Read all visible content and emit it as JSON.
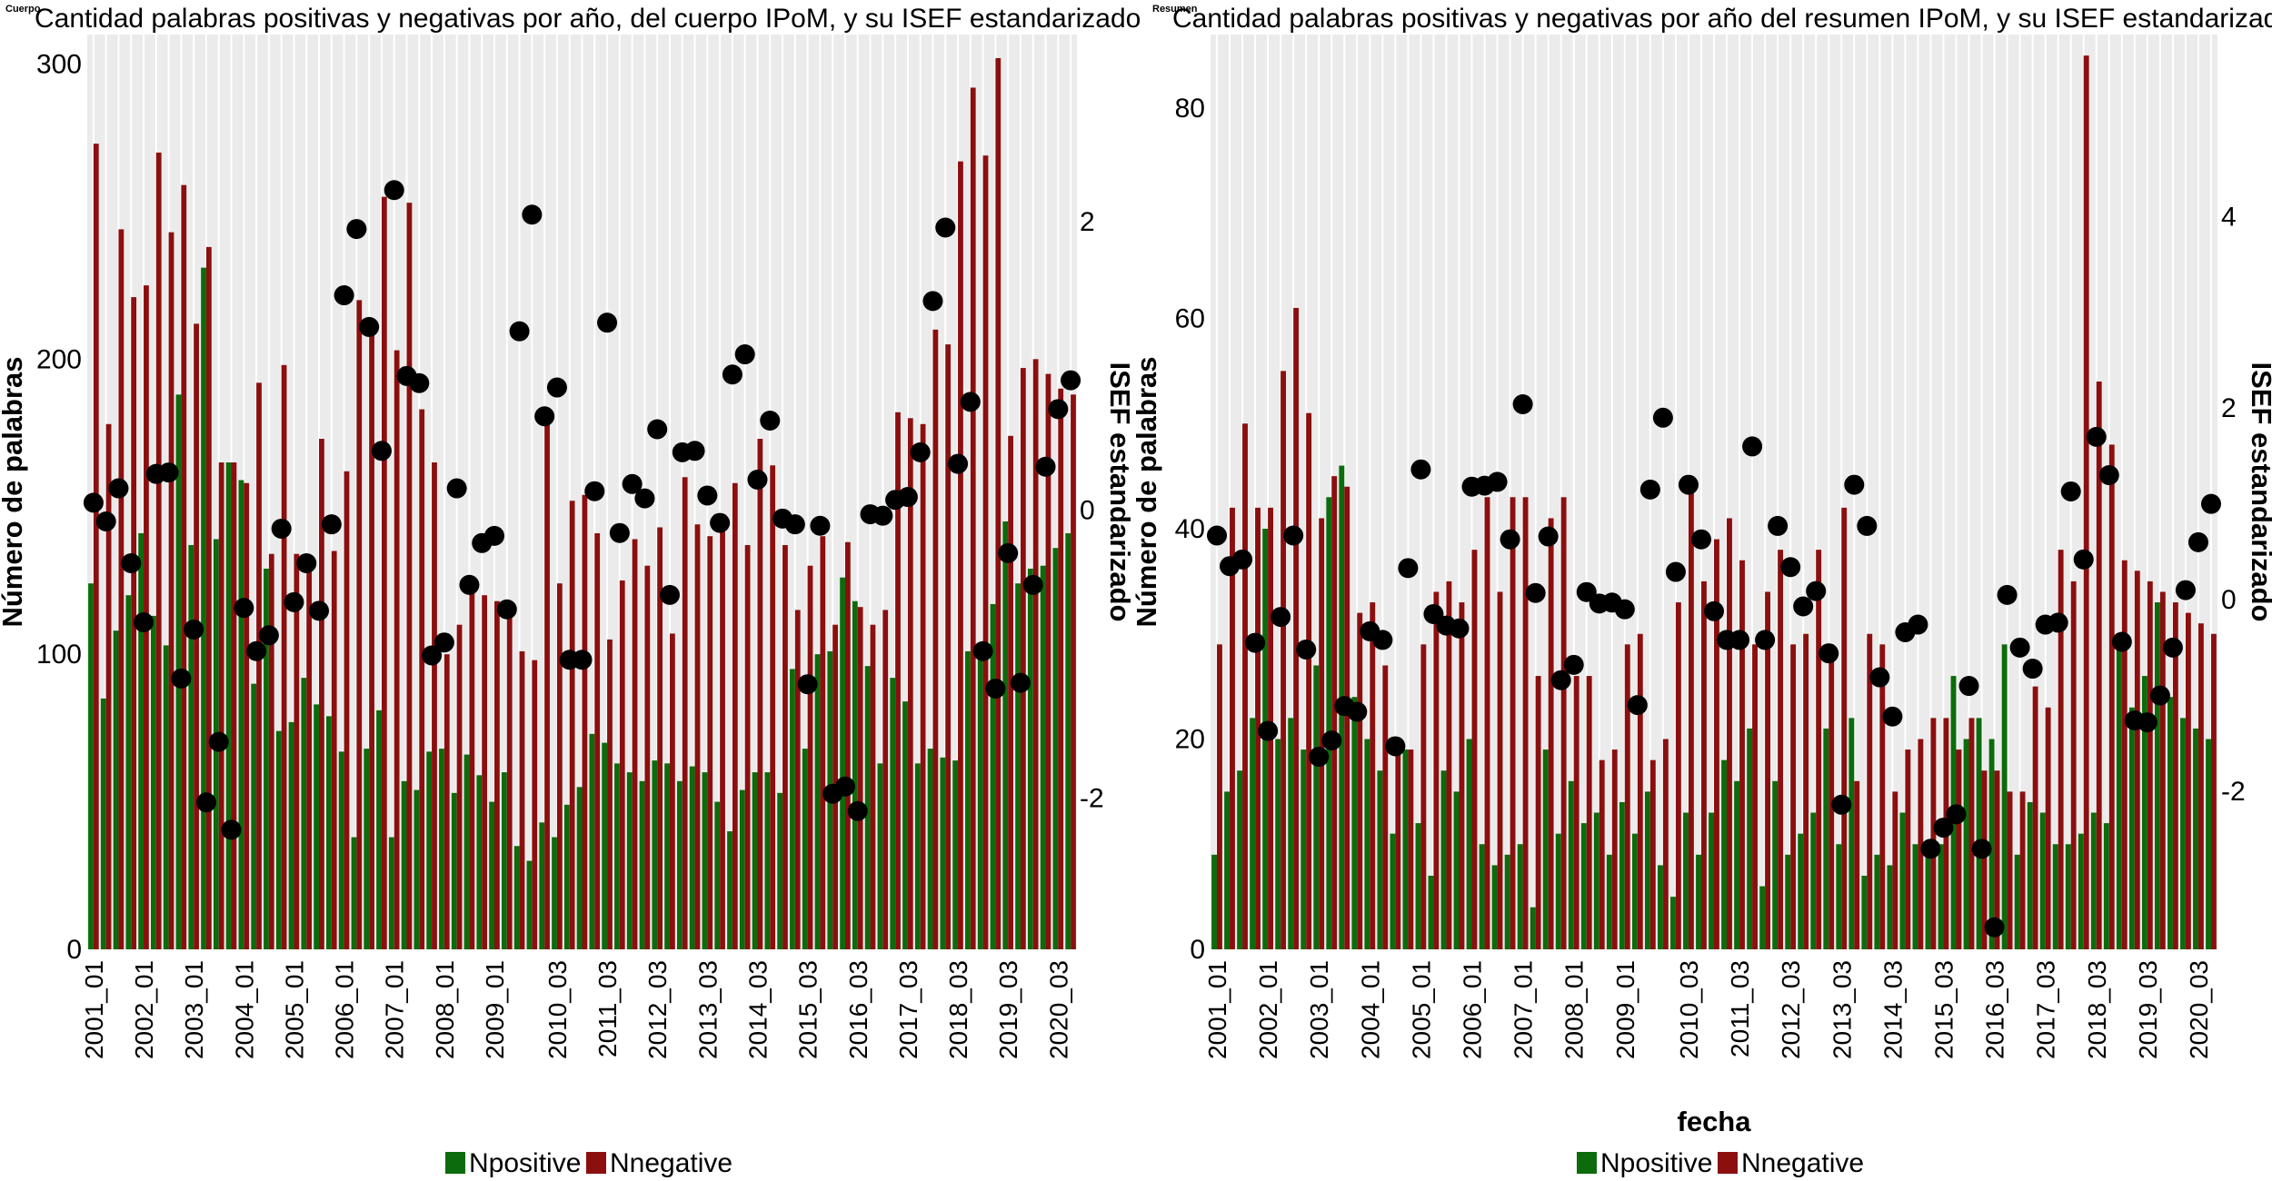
{
  "colors": {
    "positive": "#0c6b0c",
    "negative": "#8b0f0f",
    "dots": "#000000",
    "panel_background": "#ebebeb",
    "grid": "#ffffff"
  },
  "legend": {
    "positive_label": "Npositive",
    "negative_label": "Nnegative"
  },
  "chart_data": [
    {
      "type": "bar",
      "tag": "Cuerpo",
      "title": "Cantidad palabras positivas y negativas por año, del cuerpo IPoM, y su ISEF estandarizado",
      "xlabel": "",
      "ylabel": "Número de palabras",
      "y2label": "ISEF estandarizado",
      "ylim": [
        0,
        310
      ],
      "y2lim": [
        -3.05,
        3.3
      ],
      "yticks": [
        "0",
        "100",
        "200",
        "300"
      ],
      "y2ticks": [
        "-2",
        "0",
        "2"
      ],
      "xtick_labels": [
        "2001_01",
        "2002_01",
        "2003_01",
        "2004_01",
        "2005_01",
        "2006_01",
        "2007_01",
        "2008_01",
        "2009_01",
        "2010_03",
        "2011_03",
        "2012_03",
        "2013_03",
        "2014_03",
        "2015_03",
        "2016_03",
        "2017_03",
        "2018_03",
        "2019_03",
        "2020_03"
      ],
      "n_periods": 79,
      "xtick_positions": [
        0,
        4,
        8,
        12,
        16,
        20,
        24,
        28,
        32,
        37,
        41,
        45,
        49,
        53,
        57,
        61,
        65,
        69,
        73,
        77
      ],
      "legend_position": "bottom",
      "series": [
        {
          "name": "Npositive",
          "values": [
            124,
            85,
            108,
            120,
            141,
            113,
            103,
            188,
            137,
            231,
            139,
            165,
            159,
            90,
            129,
            74,
            77,
            92,
            83,
            79,
            67,
            38,
            68,
            81,
            38,
            57,
            54,
            67,
            68,
            53,
            66,
            59,
            50,
            60,
            35,
            30,
            43,
            38,
            49,
            55,
            73,
            70,
            63,
            60,
            57,
            64,
            63,
            57,
            62,
            60,
            50,
            40,
            54,
            60,
            60,
            53,
            95,
            68,
            100,
            101,
            126,
            118,
            96,
            63,
            92,
            84,
            63,
            68,
            65,
            64,
            101,
            103,
            117,
            145,
            124,
            129,
            130,
            136,
            141
          ]
        },
        {
          "name": "Nnegative",
          "values": [
            273,
            178,
            244,
            221,
            225,
            270,
            243,
            259,
            212,
            238,
            165,
            165,
            158,
            192,
            134,
            198,
            134,
            129,
            173,
            135,
            162,
            220,
            210,
            255,
            203,
            253,
            183,
            165,
            100,
            110,
            124,
            120,
            118,
            115,
            101,
            98,
            182,
            124,
            152,
            154,
            141,
            105,
            125,
            139,
            130,
            143,
            107,
            160,
            144,
            140,
            146,
            158,
            137,
            173,
            164,
            137,
            115,
            130,
            140,
            110,
            138,
            116,
            110,
            115,
            182,
            180,
            178,
            210,
            205,
            267,
            292,
            269,
            302,
            174,
            197,
            200,
            195,
            190,
            188
          ]
        },
        {
          "name": "ISEF",
          "values": [
            0.05,
            -0.08,
            0.15,
            -0.37,
            -0.78,
            0.25,
            0.26,
            -1.17,
            -0.83,
            -2.03,
            -1.61,
            -2.22,
            -0.68,
            -0.98,
            -0.87,
            -0.13,
            -0.64,
            -0.37,
            -0.7,
            -0.1,
            1.49,
            1.95,
            1.27,
            0.41,
            2.22,
            0.93,
            0.88,
            -1.01,
            -0.92,
            0.15,
            -0.52,
            -0.23,
            -0.18,
            -0.69,
            1.24,
            2.05,
            0.65,
            0.85,
            -1.04,
            -1.04,
            0.13,
            1.3,
            -0.16,
            0.18,
            0.08,
            0.56,
            -0.59,
            0.4,
            0.41,
            0.1,
            -0.09,
            0.94,
            1.08,
            0.21,
            0.62,
            -0.06,
            -0.1,
            -1.21,
            -0.11,
            -1.97,
            -1.92,
            -2.09,
            -0.03,
            -0.04,
            0.07,
            0.09,
            0.4,
            1.45,
            1.96,
            0.32,
            0.75,
            -0.98,
            -1.24,
            -0.3,
            -1.2,
            -0.52,
            0.3,
            0.7,
            0.9
          ]
        }
      ]
    },
    {
      "type": "bar",
      "tag": "Resumen",
      "title": "Cantidad palabras positivas y negativas por año del resumen IPoM, y su ISEF estandarizado",
      "xlabel": "fecha",
      "ylabel": "Número de palabras",
      "y2label": "ISEF estandarizado",
      "ylim": [
        0,
        87
      ],
      "y2lim": [
        -3.65,
        5.9
      ],
      "yticks": [
        "0",
        "20",
        "40",
        "60",
        "80"
      ],
      "y2ticks": [
        "-2",
        "0",
        "2",
        "4"
      ],
      "xtick_labels": [
        "2001_01",
        "2002_01",
        "2003_01",
        "2004_01",
        "2005_01",
        "2006_01",
        "2007_01",
        "2008_01",
        "2009_01",
        "2010_03",
        "2011_03",
        "2012_03",
        "2013_03",
        "2014_03",
        "2015_03",
        "2016_03",
        "2017_03",
        "2018_03",
        "2019_03",
        "2020_03"
      ],
      "n_periods": 79,
      "xtick_positions": [
        0,
        4,
        8,
        12,
        16,
        20,
        24,
        28,
        32,
        37,
        41,
        45,
        49,
        53,
        57,
        61,
        65,
        69,
        73,
        77
      ],
      "legend_position": "bottom",
      "series": [
        {
          "name": "Npositive",
          "values": [
            9,
            15,
            17,
            22,
            40,
            20,
            22,
            19,
            27,
            43,
            46,
            24,
            20,
            17,
            11,
            19,
            12,
            7,
            17,
            15,
            20,
            10,
            8,
            9,
            10,
            4,
            19,
            11,
            16,
            12,
            13,
            9,
            14,
            11,
            15,
            8,
            5,
            13,
            9,
            13,
            18,
            16,
            21,
            6,
            16,
            9,
            11,
            13,
            21,
            10,
            22,
            7,
            9,
            8,
            13,
            10,
            10,
            10,
            26,
            20,
            22,
            20,
            29,
            9,
            14,
            13,
            10,
            10,
            11,
            13,
            12,
            30,
            23,
            26,
            33,
            24,
            22,
            21,
            20
          ]
        },
        {
          "name": "Nnegative",
          "values": [
            29,
            42,
            50,
            42,
            42,
            55,
            61,
            51,
            41,
            45,
            44,
            32,
            33,
            27,
            20,
            19,
            29,
            34,
            35,
            33,
            38,
            43,
            34,
            43,
            43,
            26,
            41,
            43,
            26,
            26,
            18,
            19,
            29,
            30,
            18,
            20,
            33,
            44,
            35,
            39,
            41,
            37,
            29,
            34,
            38,
            29,
            30,
            38,
            29,
            42,
            16,
            30,
            29,
            15,
            19,
            20,
            22,
            22,
            19,
            22,
            17,
            17,
            15,
            15,
            25,
            23,
            38,
            35,
            85,
            54,
            48,
            37,
            36,
            35,
            34,
            33,
            32,
            31,
            30
          ]
        },
        {
          "name": "ISEF",
          "values": [
            0.67,
            0.35,
            0.42,
            -0.45,
            -1.37,
            -0.18,
            0.67,
            -0.52,
            -1.64,
            -1.47,
            -1.11,
            -1.17,
            -0.33,
            -0.42,
            -1.53,
            0.33,
            1.36,
            -0.15,
            -0.27,
            -0.3,
            1.18,
            1.19,
            1.23,
            0.63,
            2.04,
            0.07,
            0.66,
            -0.84,
            -0.68,
            0.08,
            -0.04,
            -0.03,
            -0.1,
            -1.1,
            1.15,
            1.9,
            0.29,
            1.2,
            0.63,
            -0.12,
            -0.42,
            -0.42,
            1.6,
            -0.42,
            0.77,
            0.34,
            -0.07,
            0.09,
            -0.56,
            -2.14,
            1.2,
            0.77,
            -0.81,
            -1.22,
            -0.34,
            -0.26,
            -2.6,
            -2.38,
            -2.24,
            -0.9,
            -2.6,
            -3.42,
            0.05,
            -0.5,
            -0.72,
            -0.26,
            -0.24,
            1.13,
            0.42,
            1.7,
            1.3,
            -0.44,
            -1.26,
            -1.28,
            -1.0,
            -0.5,
            0.1,
            0.6,
            1.0
          ]
        }
      ]
    }
  ]
}
